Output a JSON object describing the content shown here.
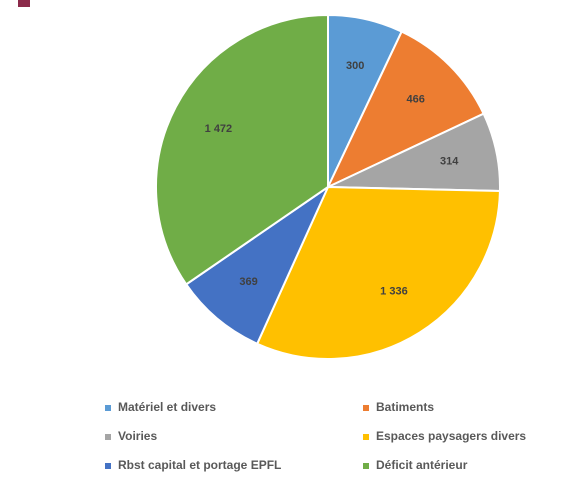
{
  "chart_data": {
    "type": "pie",
    "categories": [
      "Matériel et divers",
      "Batiments",
      "Voiries",
      "Espaces paysagers divers",
      "Rbst capital et portage EPFL",
      "Déficit antérieur"
    ],
    "values": [
      300,
      466,
      314,
      1336,
      369,
      1472
    ],
    "value_labels": [
      "300",
      "466",
      "314",
      "1 336",
      "369",
      "1 472"
    ],
    "colors": [
      "#5b9bd5",
      "#ed7d31",
      "#a5a5a5",
      "#ffc000",
      "#4472c4",
      "#70ad47"
    ]
  }
}
